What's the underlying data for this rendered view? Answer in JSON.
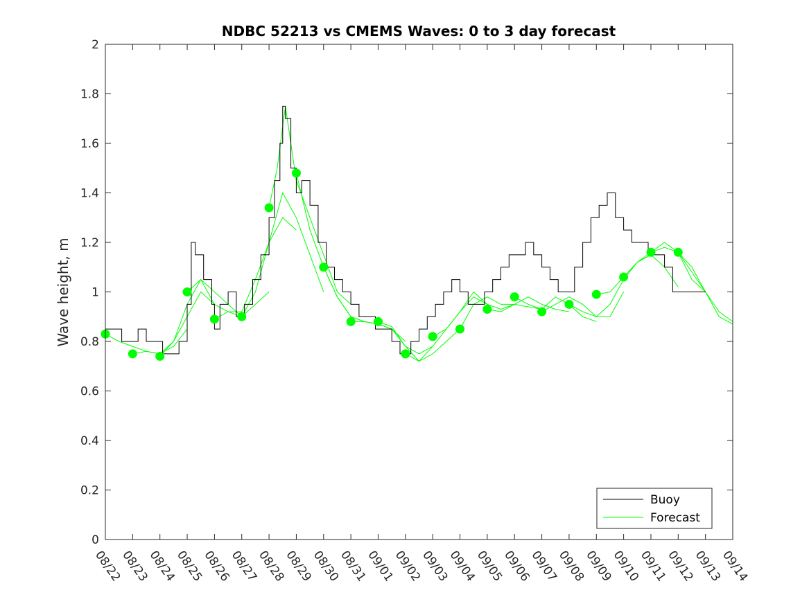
{
  "chart_data": {
    "type": "line",
    "title": "NDBC 52213 vs CMEMS Waves: 0 to 3 day forecast",
    "ylabel": "Wave height, m",
    "xlabel": "",
    "xlim": [
      "08/22",
      "09/14"
    ],
    "ylim": [
      0,
      2
    ],
    "yticks": [
      "0",
      "0.2",
      "0.4",
      "0.6",
      "0.8",
      "1",
      "1.2",
      "1.4",
      "1.6",
      "1.8",
      "2"
    ],
    "xticks": [
      "08/22",
      "08/23",
      "08/24",
      "08/25",
      "08/26",
      "08/27",
      "08/28",
      "08/29",
      "08/30",
      "08/31",
      "09/01",
      "09/02",
      "09/03",
      "09/04",
      "09/05",
      "09/06",
      "09/07",
      "09/08",
      "09/09",
      "09/10",
      "09/11",
      "09/12",
      "09/13",
      "09/14"
    ],
    "grid": false,
    "legend": {
      "placement": "bottom-right",
      "entries": [
        "Buoy",
        "Forecast"
      ]
    },
    "colors": {
      "buoy": "#000000",
      "forecast": "#00ff00"
    },
    "buoy": {
      "name": "Buoy",
      "x_day": [
        0,
        0.3,
        0.6,
        0.9,
        1.2,
        1.5,
        1.8,
        2.1,
        2.4,
        2.7,
        3.0,
        3.15,
        3.3,
        3.6,
        3.9,
        4.0,
        4.2,
        4.5,
        4.8,
        5.1,
        5.4,
        5.7,
        6.0,
        6.2,
        6.4,
        6.5,
        6.6,
        6.8,
        7.0,
        7.2,
        7.5,
        7.8,
        8.1,
        8.4,
        8.7,
        9.0,
        9.3,
        9.6,
        9.9,
        10.2,
        10.5,
        10.8,
        11.0,
        11.2,
        11.5,
        11.8,
        12.1,
        12.4,
        12.7,
        13.0,
        13.3,
        13.6,
        13.9,
        14.2,
        14.5,
        14.8,
        15.1,
        15.4,
        15.7,
        16.0,
        16.3,
        16.6,
        16.9,
        17.2,
        17.5,
        17.8,
        18.1,
        18.4,
        18.7,
        19.0,
        19.3,
        19.6,
        19.9,
        20.2,
        20.5,
        20.8,
        21.1,
        21.4,
        21.7,
        22.0
      ],
      "values": [
        0.85,
        0.85,
        0.8,
        0.8,
        0.85,
        0.8,
        0.8,
        0.75,
        0.75,
        0.8,
        0.95,
        1.2,
        1.15,
        1.05,
        0.95,
        0.85,
        0.95,
        1.0,
        0.9,
        0.95,
        1.05,
        1.15,
        1.3,
        1.45,
        1.6,
        1.75,
        1.7,
        1.5,
        1.4,
        1.45,
        1.35,
        1.2,
        1.1,
        1.05,
        1.0,
        0.95,
        0.9,
        0.9,
        0.85,
        0.85,
        0.8,
        0.75,
        0.75,
        0.8,
        0.85,
        0.9,
        0.95,
        1.0,
        1.05,
        1.0,
        0.95,
        0.95,
        1.0,
        1.05,
        1.1,
        1.15,
        1.15,
        1.2,
        1.15,
        1.1,
        1.05,
        1.0,
        1.0,
        1.1,
        1.2,
        1.3,
        1.35,
        1.4,
        1.3,
        1.25,
        1.2,
        1.2,
        1.15,
        1.15,
        1.1,
        1.0,
        1.0,
        1.0,
        1.0,
        1.0
      ]
    },
    "forecast_runs": [
      {
        "x_day": [
          0,
          0.5,
          1,
          1.5,
          2,
          2.5,
          3
        ],
        "values": [
          0.83,
          0.8,
          0.78,
          0.76,
          0.75,
          0.78,
          0.85
        ]
      },
      {
        "x_day": [
          1,
          1.5,
          2,
          2.5,
          3,
          3.5,
          4
        ],
        "values": [
          0.75,
          0.76,
          0.75,
          0.8,
          0.9,
          1.0,
          0.95
        ]
      },
      {
        "x_day": [
          2,
          2.5,
          3,
          3.5,
          4,
          4.5,
          5
        ],
        "values": [
          0.74,
          0.8,
          0.95,
          1.05,
          1.0,
          0.95,
          0.9
        ]
      },
      {
        "x_day": [
          3,
          3.5,
          4,
          4.5,
          5,
          5.5,
          6
        ],
        "values": [
          1.0,
          1.05,
          0.95,
          0.92,
          0.9,
          0.95,
          1.0
        ]
      },
      {
        "x_day": [
          4,
          4.5,
          5,
          5.5,
          6,
          6.5,
          7
        ],
        "values": [
          0.89,
          0.92,
          0.92,
          1.05,
          1.2,
          1.3,
          1.25
        ]
      },
      {
        "x_day": [
          5,
          5.5,
          6,
          6.5,
          7,
          7.5,
          8
        ],
        "values": [
          0.9,
          1.0,
          1.2,
          1.4,
          1.3,
          1.15,
          1.0
        ]
      },
      {
        "x_day": [
          6,
          6.3,
          6.6,
          7,
          7.5,
          8,
          8.5,
          9
        ],
        "values": [
          1.34,
          1.5,
          1.75,
          1.45,
          1.3,
          1.15,
          1.0,
          0.95
        ]
      },
      {
        "x_day": [
          7,
          7.5,
          8,
          8.5,
          9,
          9.5,
          10
        ],
        "values": [
          1.48,
          1.25,
          1.1,
          0.98,
          0.9,
          0.88,
          0.87
        ]
      },
      {
        "x_day": [
          8,
          8.5,
          9,
          9.5,
          10,
          10.5,
          11
        ],
        "values": [
          1.1,
          0.98,
          0.9,
          0.88,
          0.87,
          0.85,
          0.8
        ]
      },
      {
        "x_day": [
          9,
          9.5,
          10,
          10.5,
          11,
          11.5,
          12
        ],
        "values": [
          0.88,
          0.88,
          0.87,
          0.85,
          0.78,
          0.75,
          0.78
        ]
      },
      {
        "x_day": [
          10,
          10.5,
          11,
          11.5,
          12,
          12.5,
          13
        ],
        "values": [
          0.88,
          0.86,
          0.78,
          0.72,
          0.75,
          0.8,
          0.85
        ]
      },
      {
        "x_day": [
          11,
          11.5,
          12,
          12.5,
          13,
          13.5,
          14
        ],
        "values": [
          0.75,
          0.72,
          0.78,
          0.85,
          0.92,
          0.98,
          0.95
        ]
      },
      {
        "x_day": [
          12,
          12.5,
          13,
          13.5,
          14,
          14.5,
          15
        ],
        "values": [
          0.82,
          0.85,
          0.92,
          1.0,
          0.95,
          0.93,
          0.95
        ]
      },
      {
        "x_day": [
          13,
          13.5,
          14,
          14.5,
          15,
          15.5,
          16
        ],
        "values": [
          0.85,
          0.95,
          0.98,
          0.95,
          0.95,
          0.94,
          0.93
        ]
      },
      {
        "x_day": [
          14,
          14.5,
          15,
          15.5,
          16,
          16.5,
          17
        ],
        "values": [
          0.93,
          0.92,
          0.95,
          0.98,
          0.95,
          0.93,
          0.92
        ]
      },
      {
        "x_day": [
          15,
          15.5,
          16,
          16.5,
          17,
          17.5,
          18
        ],
        "values": [
          0.98,
          0.95,
          0.93,
          0.98,
          0.95,
          0.9,
          0.88
        ]
      },
      {
        "x_day": [
          16,
          16.5,
          17,
          17.5,
          18,
          18.5,
          19
        ],
        "values": [
          0.92,
          0.95,
          0.98,
          0.95,
          0.9,
          0.9,
          1.0
        ]
      },
      {
        "x_day": [
          17,
          17.5,
          18,
          18.5,
          19,
          19.5,
          20
        ],
        "values": [
          0.95,
          0.92,
          0.9,
          0.95,
          1.05,
          1.12,
          1.15
        ]
      },
      {
        "x_day": [
          18,
          18.5,
          19,
          19.5,
          20,
          20.5,
          21
        ],
        "values": [
          0.99,
          1.0,
          1.06,
          1.12,
          1.15,
          1.1,
          1.02
        ]
      },
      {
        "x_day": [
          19,
          19.5,
          20,
          20.5,
          21,
          21.5,
          22
        ],
        "values": [
          1.06,
          1.12,
          1.16,
          1.2,
          1.16,
          1.05,
          1.0
        ]
      },
      {
        "x_day": [
          20,
          20.5,
          21,
          21.5,
          22,
          22.5,
          23
        ],
        "values": [
          1.16,
          1.18,
          1.16,
          1.08,
          1.0,
          0.92,
          0.88
        ]
      },
      {
        "x_day": [
          21,
          21.5,
          22,
          22.5,
          23
        ],
        "values": [
          1.16,
          1.1,
          1.0,
          0.9,
          0.87
        ]
      }
    ],
    "analysis_points": {
      "x_day": [
        0,
        1,
        2,
        3,
        4,
        5,
        6,
        7,
        8,
        9,
        10,
        11,
        12,
        13,
        14,
        15,
        16,
        17,
        18,
        19,
        20,
        21
      ],
      "values": [
        0.83,
        0.75,
        0.74,
        1.0,
        0.89,
        0.9,
        1.34,
        1.48,
        1.1,
        0.88,
        0.88,
        0.75,
        0.82,
        0.85,
        0.93,
        0.98,
        0.92,
        0.95,
        0.99,
        1.06,
        1.16,
        1.16
      ]
    }
  }
}
